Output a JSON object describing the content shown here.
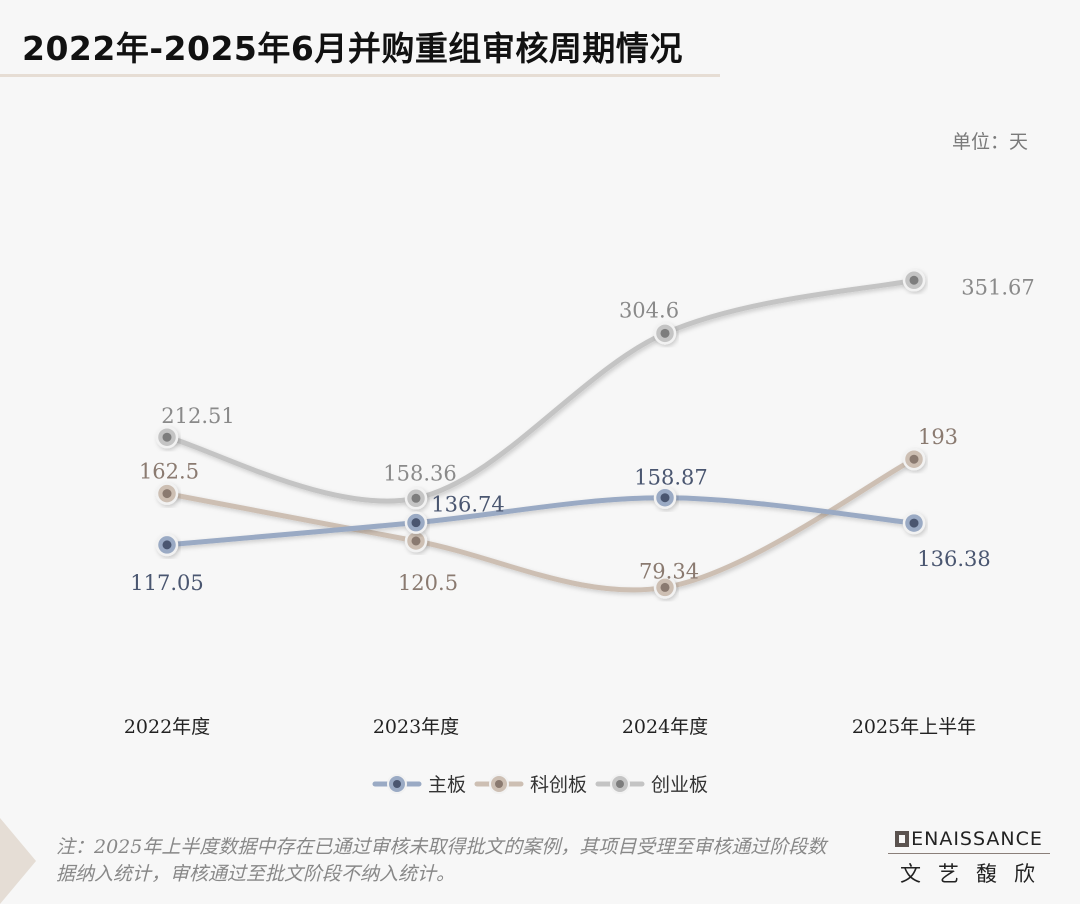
{
  "title": "2022年-2025年6月并购重组审核周期情况",
  "unit_label": "单位：天",
  "chart_data": {
    "type": "line",
    "categories": [
      "2022年度",
      "2023年度",
      "2024年度",
      "2025年上半年"
    ],
    "series": [
      {
        "name": "主板",
        "values": [
          117.05,
          136.74,
          158.87,
          136.38
        ],
        "color": "#9aaac4",
        "dot": "#4a5670",
        "label_color": "#4a5670"
      },
      {
        "name": "科创板",
        "values": [
          162.5,
          120.5,
          79.34,
          193
        ],
        "color": "#cdbfb3",
        "dot": "#8a7a70",
        "label_color": "#8a7a70"
      },
      {
        "name": "创业板",
        "values": [
          212.51,
          158.36,
          304.6,
          351.67
        ],
        "color": "#c4c4c4",
        "dot": "#7d7d7d",
        "label_color": "#8a8a8a"
      }
    ],
    "value_labels": [
      [
        "117.05",
        "136.74",
        "158.87",
        "136.38"
      ],
      [
        "162.5",
        "120.5",
        "79.34",
        "193"
      ],
      [
        "212.51",
        "158.36",
        "304.6",
        "351.67"
      ]
    ],
    "grid": false,
    "legend_position": "bottom"
  },
  "note": "注：2025年上半度数据中存在已通过审核未取得批文的案例，其项目受理至审核通过阶段数据纳入统计，审核通过至批文阶段不纳入统计。",
  "logo": {
    "en": "RENAISSANCE",
    "en_rest": "ENAISSANCE",
    "cn": "文艺馥欣"
  }
}
